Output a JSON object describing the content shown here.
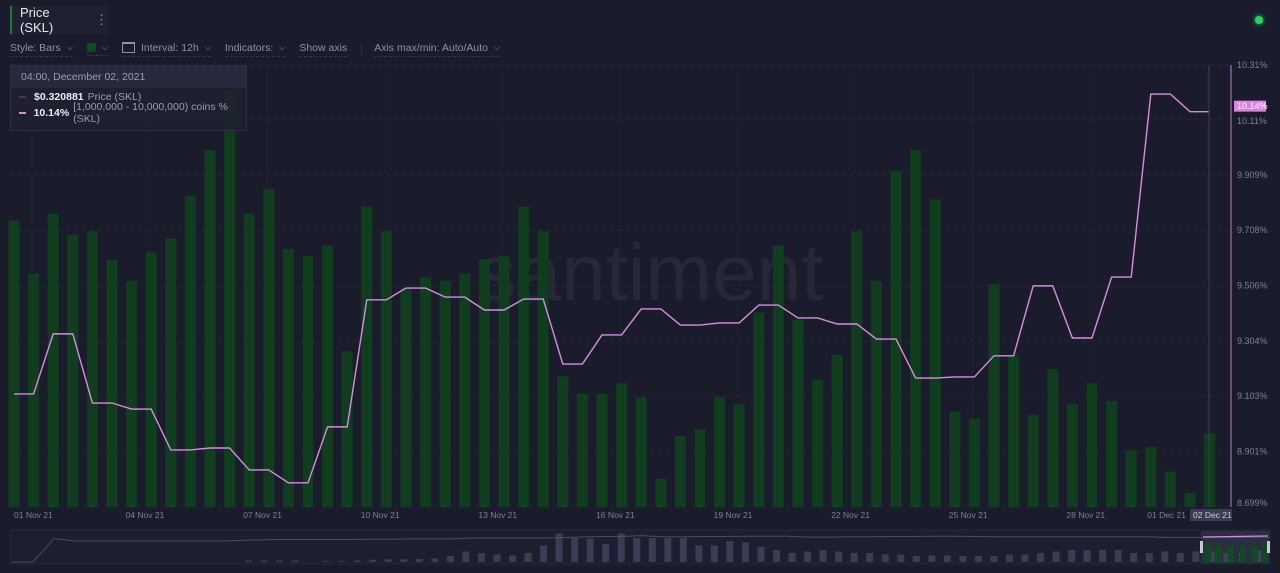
{
  "header": {
    "metric_tab": "Price (SKL)",
    "more_icon": "vertical-dots-icon",
    "status_color": "#26d45a"
  },
  "toolbar": {
    "style": "Style: Bars",
    "color_swatch": "#0f4a22",
    "interval": "Interval: 12h",
    "indicators": "Indicators:",
    "show_axis": "Show axis",
    "axis_minmax": "Axis max/min: Auto/Auto"
  },
  "tooltip": {
    "datetime": "04:00, December 02, 2021",
    "price_value": "$0.320881",
    "price_label": "Price (SKL)",
    "holders_value": "10.14%",
    "holders_label": "[1,000,000 - 10,000,000) coins % (SKL)"
  },
  "watermark": "santiment",
  "colors": {
    "bars": "#0f3d1d",
    "line": "#d98be2",
    "background": "#1b1c2b"
  },
  "chart_data": {
    "type": "bar+line",
    "interval": "12h",
    "x_tick_labels": [
      "01 Nov 21",
      "04 Nov 21",
      "07 Nov 21",
      "10 Nov 21",
      "13 Nov 21",
      "16 Nov 21",
      "19 Nov 21",
      "22 Nov 21",
      "25 Nov 21",
      "28 Nov 21",
      "01 Dec 21"
    ],
    "highlighted_x_label": "02 Dec 21",
    "y_right_ticks": [
      "10.31%",
      "10.11%",
      "9.909%",
      "9.708%",
      "9.506%",
      "9.304%",
      "9.103%",
      "8.901%",
      "8.699%"
    ],
    "ylim_right": [
      8.699,
      10.31
    ],
    "current_line_label": "10.14%",
    "grid": true,
    "series": [
      {
        "name": "Price (SKL)",
        "type": "bar",
        "unit": "USD",
        "values": [
          0.381,
          0.366,
          0.383,
          0.377,
          0.378,
          0.37,
          0.364,
          0.372,
          0.376,
          0.388,
          0.401,
          0.418,
          0.383,
          0.39,
          0.373,
          0.371,
          0.374,
          0.344,
          0.385,
          0.378,
          0.362,
          0.365,
          0.364,
          0.366,
          0.37,
          0.371,
          0.385,
          0.378,
          0.337,
          0.332,
          0.332,
          0.335,
          0.331,
          0.308,
          0.32,
          0.322,
          0.331,
          0.329,
          0.355,
          0.374,
          0.353,
          0.336,
          0.343,
          0.378,
          0.364,
          0.395,
          0.401,
          0.387,
          0.327,
          0.325,
          0.363,
          0.343,
          0.326,
          0.339,
          0.329,
          0.335,
          0.33,
          0.316,
          0.317,
          0.31,
          0.304,
          0.320881
        ]
      },
      {
        "name": "[1,000,000 - 10,000,000) coins % (SKL)",
        "type": "line",
        "unit": "%",
        "daily_values": [
          9.111,
          9.33,
          9.078,
          9.056,
          8.907,
          8.914,
          8.834,
          8.787,
          8.991,
          9.454,
          9.497,
          9.464,
          9.417,
          9.457,
          9.22,
          9.326,
          9.421,
          9.362,
          9.37,
          9.435,
          9.388,
          9.366,
          9.311,
          9.169,
          9.173,
          9.25,
          9.505,
          9.315,
          9.537,
          10.204,
          10.14
        ]
      }
    ]
  },
  "navigator": {
    "line": [
      0.0,
      0.0,
      0.78,
      0.7,
      0.7,
      0.7,
      0.7,
      0.7,
      0.7,
      0.7,
      0.7,
      0.72,
      0.74,
      0.75,
      0.75,
      0.75,
      0.75,
      0.76,
      0.76,
      0.77,
      0.77,
      0.77,
      0.8,
      0.8,
      0.8,
      0.8,
      0.81,
      0.83,
      0.85,
      0.85,
      0.88,
      0.84,
      0.84,
      0.85,
      0.85,
      0.86,
      0.86,
      0.86,
      0.83,
      0.83,
      0.84,
      0.84,
      0.85,
      0.85,
      0.86,
      0.86,
      0.85,
      0.84,
      0.84,
      0.84,
      0.84,
      0.84,
      0.84,
      0.84,
      0.84,
      0.82,
      0.82,
      0.82,
      0.82,
      0.82,
      0.82
    ],
    "bars": [
      0,
      0,
      0,
      0,
      0,
      0,
      0,
      0,
      0,
      0,
      0,
      0,
      0,
      0,
      0,
      0.05,
      0.05,
      0.05,
      0.05,
      0,
      0.03,
      0.03,
      0.05,
      0.07,
      0.09,
      0.09,
      0.1,
      0.12,
      0.2,
      0.35,
      0.3,
      0.25,
      0.22,
      0.3,
      0.55,
      0.95,
      0.8,
      0.78,
      0.6,
      0.95,
      0.8,
      0.8,
      0.8,
      0.8,
      0.55,
      0.55,
      0.7,
      0.65,
      0.5,
      0.4,
      0.3,
      0.35,
      0.4,
      0.35,
      0.3,
      0.3,
      0.25,
      0.25,
      0.2,
      0.22,
      0.22,
      0.2,
      0.2,
      0.2,
      0.25,
      0.25,
      0.3,
      0.35,
      0.4,
      0.4,
      0.4,
      0.4,
      0.3,
      0.3,
      0.35,
      0.3,
      0.35,
      0.35,
      0.3,
      0.3,
      0.4
    ]
  }
}
